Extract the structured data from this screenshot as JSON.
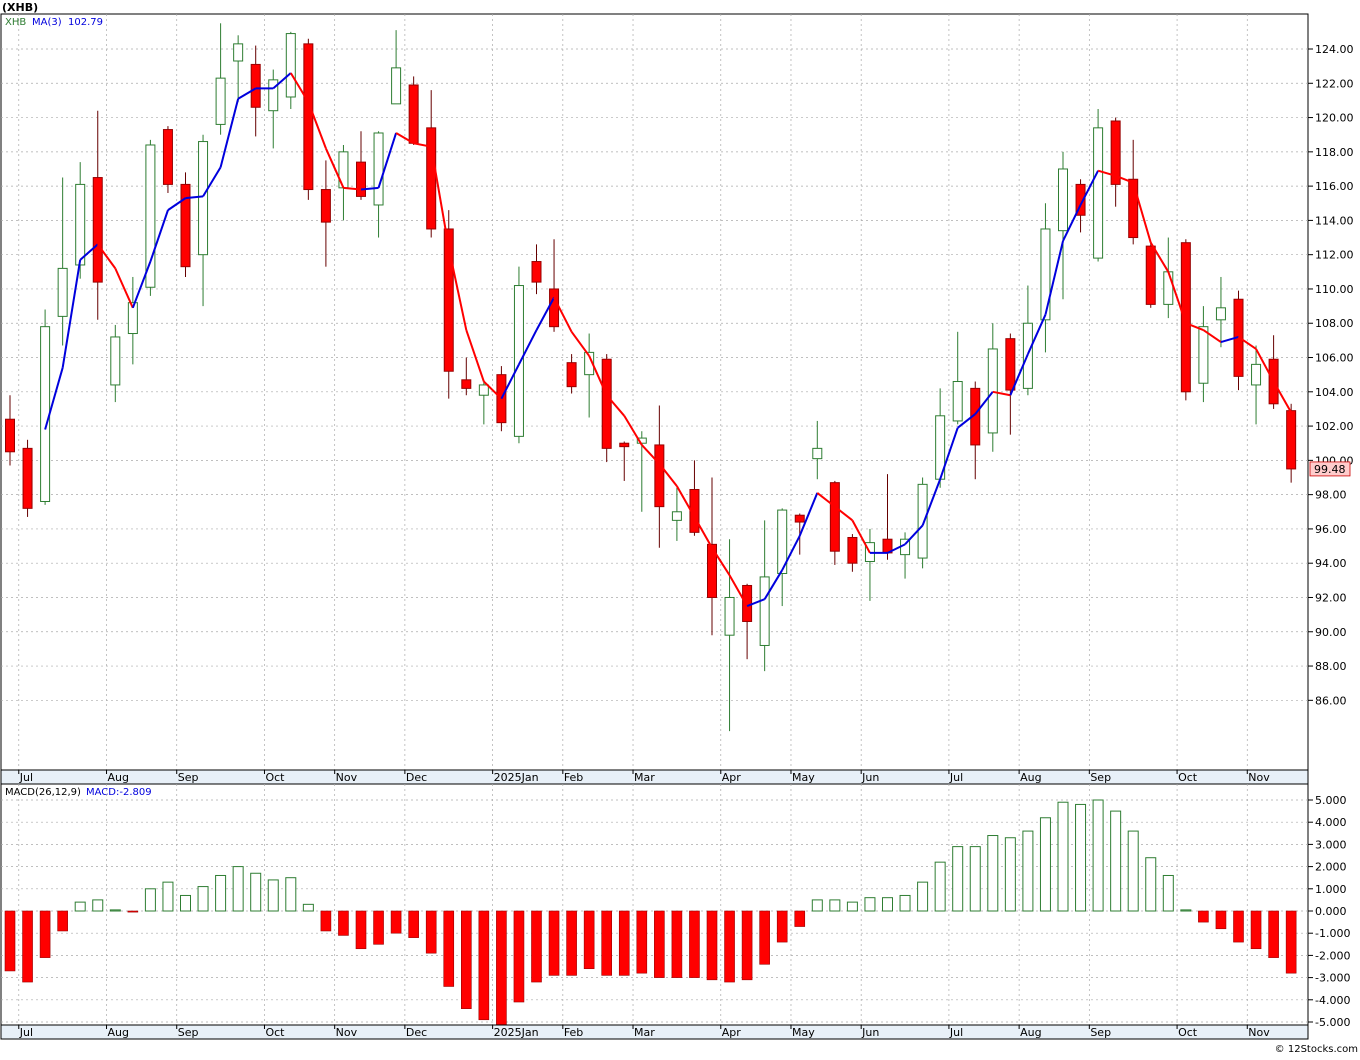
{
  "header": {
    "title": "(XHB)",
    "ticker_label": "XHB",
    "ma_label": "MA(3)",
    "ma_value": "102.79",
    "macd_params": "MACD(26,12,9)",
    "macd_value_label": "MACD:-2.809",
    "last_price_badge": "99.48",
    "footer": "© 12Stocks.com"
  },
  "colors": {
    "up": "#2e7d32",
    "down": "#ff0000",
    "ma_up": "#0000dd",
    "ma_down": "#ff0000",
    "grid": "#aaaaaa",
    "badge_bg": "#ffcccc"
  },
  "chart_data": [
    {
      "type": "candlestick",
      "title": "(XHB)",
      "grid": true,
      "ylim": [
        84.2,
        126.1
      ],
      "y_ticks": [
        86,
        88,
        90,
        92,
        94,
        96,
        98,
        100,
        102,
        104,
        106,
        108,
        110,
        112,
        114,
        116,
        118,
        120,
        122,
        124
      ],
      "x_ticks": [
        "Jul",
        "Aug",
        "Sep",
        "Oct",
        "Nov",
        "Dec",
        "2025Jan",
        "Feb",
        "Mar",
        "Apr",
        "May",
        "Jun",
        "Jul",
        "Aug",
        "Sep",
        "Oct",
        "Nov"
      ],
      "x_tick_index": [
        1,
        6,
        10,
        15,
        19,
        23,
        28,
        32,
        36,
        41,
        45,
        49,
        54,
        58,
        62,
        67,
        71
      ],
      "series": [
        {
          "name": "XHB",
          "ohlc": [
            [
              102.4,
              103.8,
              99.7,
              100.5
            ],
            [
              100.7,
              101.2,
              96.7,
              97.2
            ],
            [
              97.6,
              108.8,
              97.4,
              107.8
            ],
            [
              108.4,
              116.5,
              106.7,
              111.2
            ],
            [
              111.4,
              117.4,
              110.6,
              116.1
            ],
            [
              116.5,
              120.4,
              108.2,
              110.4
            ],
            [
              104.4,
              107.9,
              103.4,
              107.2
            ],
            [
              107.4,
              110.7,
              105.6,
              109.2
            ],
            [
              110.1,
              118.7,
              109.6,
              118.4
            ],
            [
              119.3,
              119.5,
              115.6,
              116.1
            ],
            [
              116.1,
              116.8,
              110.7,
              111.3
            ],
            [
              112.0,
              119.0,
              109.0,
              118.6
            ],
            [
              119.6,
              125.5,
              119.0,
              122.3
            ],
            [
              123.3,
              124.8,
              120.9,
              124.3
            ],
            [
              123.1,
              124.2,
              118.9,
              120.6
            ],
            [
              120.4,
              122.8,
              118.2,
              122.2
            ],
            [
              121.2,
              125.0,
              120.5,
              124.9
            ],
            [
              124.3,
              124.6,
              115.2,
              115.8
            ],
            [
              115.8,
              117.5,
              111.3,
              113.9
            ],
            [
              115.9,
              118.4,
              114.0,
              118.0
            ],
            [
              117.4,
              119.2,
              115.2,
              115.4
            ],
            [
              114.9,
              119.2,
              113.0,
              119.1
            ],
            [
              120.8,
              125.1,
              120.8,
              122.9
            ],
            [
              121.9,
              122.4,
              118.4,
              118.5
            ],
            [
              119.4,
              121.6,
              113.0,
              113.5
            ],
            [
              113.5,
              114.6,
              103.6,
              105.2
            ],
            [
              104.7,
              106.0,
              103.8,
              104.2
            ],
            [
              103.8,
              104.6,
              102.1,
              104.4
            ],
            [
              105.0,
              105.5,
              101.7,
              102.2
            ],
            [
              101.4,
              111.3,
              101.0,
              110.2
            ],
            [
              111.6,
              112.6,
              109.7,
              110.4
            ],
            [
              110.0,
              112.9,
              107.5,
              107.8
            ],
            [
              105.7,
              106.2,
              103.9,
              104.3
            ],
            [
              105.0,
              107.4,
              102.5,
              106.3
            ],
            [
              105.9,
              106.2,
              99.9,
              100.7
            ],
            [
              101.0,
              101.1,
              98.8,
              100.8
            ],
            [
              101.0,
              101.7,
              97.0,
              101.3
            ],
            [
              100.9,
              103.2,
              94.9,
              97.3
            ],
            [
              96.5,
              98.4,
              95.3,
              97.0
            ],
            [
              98.3,
              100.0,
              95.6,
              95.8
            ],
            [
              95.1,
              99.0,
              89.8,
              92.0
            ],
            [
              89.8,
              95.4,
              84.2,
              92.0
            ],
            [
              92.7,
              92.8,
              88.4,
              90.6
            ],
            [
              89.2,
              96.5,
              87.7,
              93.2
            ],
            [
              93.4,
              97.2,
              91.5,
              97.1
            ],
            [
              96.8,
              96.9,
              94.5,
              96.4
            ],
            [
              100.1,
              102.3,
              98.9,
              100.7
            ],
            [
              98.7,
              98.8,
              93.9,
              94.7
            ],
            [
              95.5,
              95.7,
              93.5,
              94.0
            ],
            [
              94.1,
              96.0,
              91.8,
              95.2
            ],
            [
              95.4,
              99.2,
              94.2,
              94.6
            ],
            [
              94.5,
              95.8,
              93.1,
              95.4
            ],
            [
              94.3,
              99.0,
              93.7,
              98.6
            ],
            [
              98.9,
              104.2,
              98.4,
              102.6
            ],
            [
              102.3,
              107.5,
              102.1,
              104.6
            ],
            [
              104.2,
              104.6,
              98.9,
              100.9
            ],
            [
              101.6,
              108.0,
              100.5,
              106.5
            ],
            [
              107.1,
              107.4,
              101.5,
              104.1
            ],
            [
              104.2,
              110.2,
              103.8,
              108.0
            ],
            [
              108.2,
              115.0,
              106.3,
              113.5
            ],
            [
              113.4,
              118.0,
              109.4,
              117.0
            ],
            [
              116.1,
              116.4,
              113.3,
              114.3
            ],
            [
              111.8,
              120.5,
              111.6,
              119.4
            ],
            [
              119.8,
              120.0,
              114.8,
              116.1
            ],
            [
              116.4,
              118.7,
              112.6,
              113.0
            ],
            [
              112.5,
              112.7,
              108.9,
              109.1
            ],
            [
              109.1,
              113.0,
              108.3,
              111.0
            ],
            [
              112.7,
              112.9,
              103.5,
              104.0
            ],
            [
              104.5,
              109.0,
              103.4,
              107.8
            ],
            [
              108.2,
              110.7,
              106.6,
              108.9
            ],
            [
              109.4,
              109.9,
              104.1,
              104.9
            ],
            [
              104.4,
              106.7,
              102.1,
              105.6
            ],
            [
              105.9,
              107.3,
              103.0,
              103.3
            ],
            [
              102.9,
              103.3,
              98.7,
              99.5
            ]
          ]
        },
        {
          "name": "MA(3)",
          "values": [
            null,
            null,
            101.8,
            105.4,
            111.7,
            112.6,
            111.2,
            108.9,
            111.6,
            114.6,
            115.3,
            115.4,
            117.1,
            121.1,
            121.7,
            121.7,
            122.6,
            120.9,
            118.2,
            115.9,
            115.8,
            115.9,
            119.1,
            118.5,
            118.3,
            112.4,
            107.6,
            104.6,
            103.6,
            105.6,
            107.6,
            109.5,
            107.5,
            106.1,
            103.8,
            102.6,
            100.9,
            99.8,
            98.5,
            96.7,
            94.9,
            93.3,
            91.5,
            91.9,
            93.6,
            95.6,
            98.1,
            97.3,
            96.5,
            94.6,
            94.6,
            95.1,
            96.2,
            98.9,
            101.9,
            102.7,
            104.0,
            103.8,
            106.2,
            108.5,
            112.8,
            114.9,
            116.9,
            116.6,
            116.2,
            112.7,
            111.0,
            108.0,
            107.6,
            106.9,
            107.2,
            106.5,
            104.6,
            102.8
          ]
        }
      ]
    },
    {
      "type": "bar",
      "title": "MACD(26,12,9)",
      "grid": true,
      "ylim": [
        -5.4,
        5.4
      ],
      "y_ticks": [
        "5.000",
        "4.000",
        "3.000",
        "2.000",
        "1.000",
        "0.000",
        "-1.000",
        "-2.000",
        "-3.000",
        "-4.000",
        "-5.000"
      ],
      "x_ticks": [
        "Jul",
        "Aug",
        "Sep",
        "Oct",
        "Nov",
        "Dec",
        "2025Jan",
        "Feb",
        "Mar",
        "Apr",
        "May",
        "Jun",
        "Jul",
        "Aug",
        "Sep",
        "Oct",
        "Nov"
      ],
      "series": [
        {
          "name": "MACD",
          "values": [
            -2.7,
            -3.2,
            -2.1,
            -0.9,
            0.4,
            0.5,
            0.05,
            -0.05,
            1.0,
            1.3,
            0.7,
            1.1,
            1.6,
            2.0,
            1.7,
            1.4,
            1.5,
            0.3,
            -0.9,
            -1.1,
            -1.7,
            -1.5,
            -1.0,
            -1.2,
            -1.9,
            -3.4,
            -4.4,
            -4.9,
            -5.2,
            -4.1,
            -3.2,
            -2.9,
            -2.9,
            -2.6,
            -2.9,
            -2.9,
            -2.8,
            -3.0,
            -3.0,
            -3.0,
            -3.1,
            -3.2,
            -3.1,
            -2.4,
            -1.4,
            -0.7,
            0.5,
            0.5,
            0.4,
            0.6,
            0.6,
            0.7,
            1.3,
            2.2,
            2.9,
            2.9,
            3.4,
            3.3,
            3.6,
            4.2,
            4.9,
            4.8,
            5.0,
            4.5,
            3.6,
            2.4,
            1.6,
            0.05,
            -0.5,
            -0.8,
            -1.4,
            -1.7,
            -2.1,
            -2.8
          ]
        }
      ]
    }
  ]
}
